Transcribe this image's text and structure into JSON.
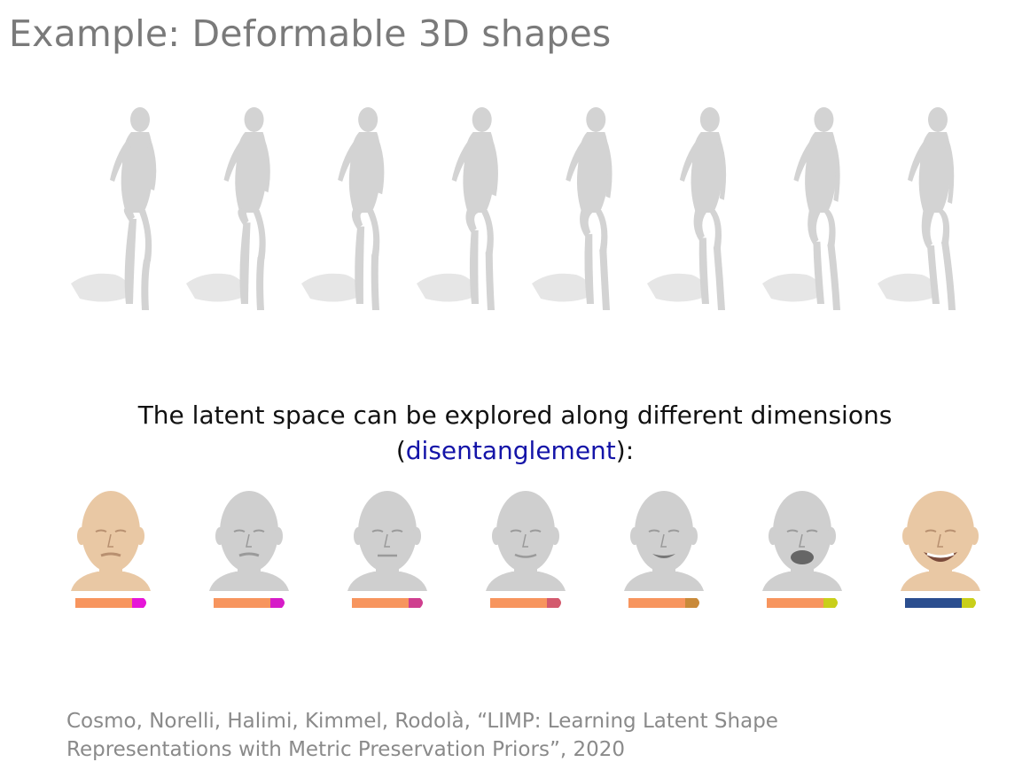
{
  "slide": {
    "title": "Example: Deformable 3D shapes",
    "caption_line1": "The latent space can be explored along different dimensions",
    "caption_paren_open": "(",
    "caption_highlight": "disentanglement",
    "caption_paren_close": "):",
    "citation_line1": "Cosmo, Norelli, Halimi, Kimmel, Rodolà, “LIMP: Learning Latent Shape",
    "citation_line2": "Representations with Metric Preservation Priors”, 2020"
  },
  "colors": {
    "title": "#7a7a7a",
    "highlight": "#1414a8",
    "mesh_gray": "#d3d3d3",
    "shadow_gray": "#e6e6e6",
    "skin": "#e9c8a4",
    "bar_orange": "#f7955e",
    "bar_blue": "#2b4e8f"
  },
  "figures": [
    {
      "label": "body-pose-1"
    },
    {
      "label": "body-pose-2"
    },
    {
      "label": "body-pose-3"
    },
    {
      "label": "body-pose-4"
    },
    {
      "label": "body-pose-5"
    },
    {
      "label": "body-pose-6"
    },
    {
      "label": "body-pose-7"
    },
    {
      "label": "body-pose-8"
    }
  ],
  "heads": [
    {
      "skin": "#e9c8a4",
      "bar_left": "#f7955e",
      "bar_right": "#e615d8",
      "expression": "pursed"
    },
    {
      "skin": "#cfcfcf",
      "bar_left": "#f7955e",
      "bar_right": "#d61cc8",
      "expression": "pursed"
    },
    {
      "skin": "#cfcfcf",
      "bar_left": "#f7955e",
      "bar_right": "#cf3f8f",
      "expression": "neutral"
    },
    {
      "skin": "#cfcfcf",
      "bar_left": "#f7955e",
      "bar_right": "#d35a6e",
      "expression": "slight-smile"
    },
    {
      "skin": "#cfcfcf",
      "bar_left": "#f7955e",
      "bar_right": "#c98a3a",
      "expression": "smile"
    },
    {
      "skin": "#cfcfcf",
      "bar_left": "#f7955e",
      "bar_right": "#c9cf1a",
      "expression": "open-mouth"
    },
    {
      "skin": "#e9c8a4",
      "bar_left": "#2b4e8f",
      "bar_right": "#c9cf1a",
      "expression": "wide-smile"
    }
  ]
}
